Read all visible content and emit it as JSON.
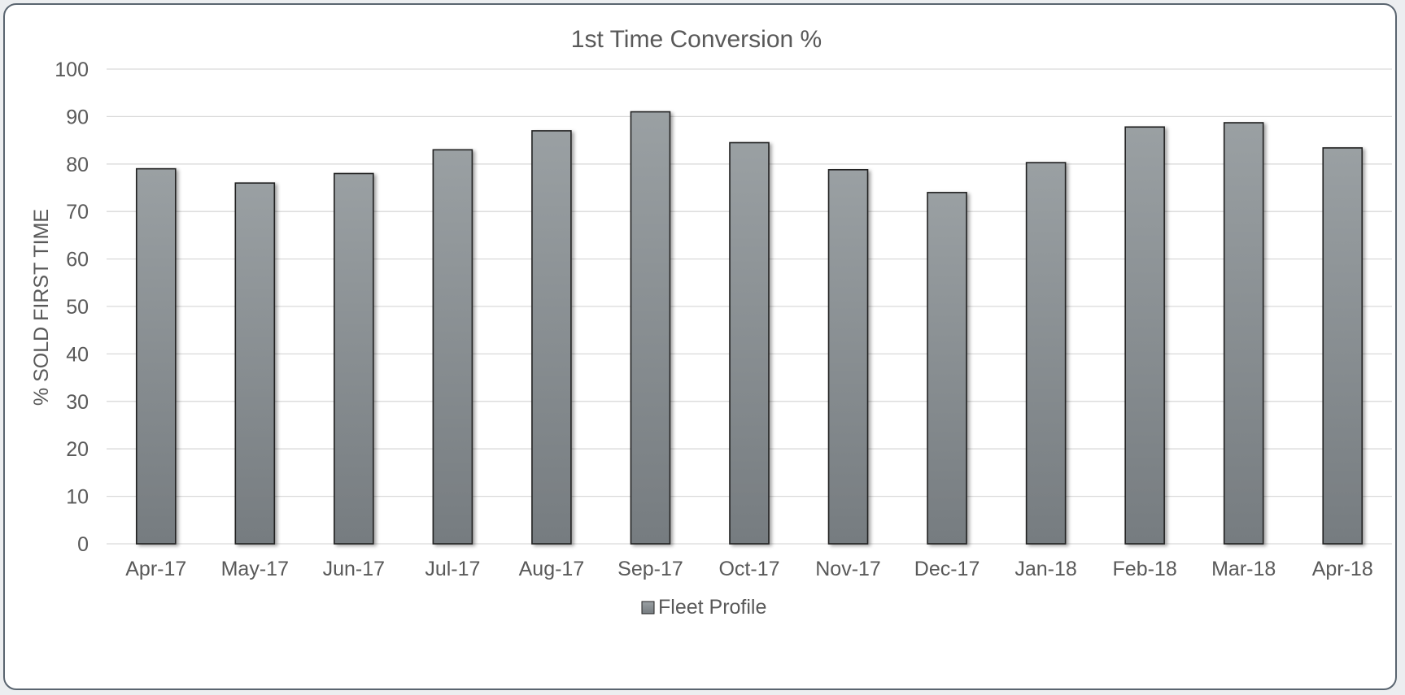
{
  "chart_data": {
    "type": "bar",
    "title": "1st Time Conversion  %",
    "xlabel": "",
    "ylabel": "% SOLD FIRST TIME",
    "ylim": [
      0,
      100
    ],
    "yticks": [
      "0",
      "10",
      "20",
      "30",
      "40",
      "50",
      "60",
      "70",
      "80",
      "90",
      "100"
    ],
    "grid": true,
    "legend_position": "bottom",
    "categories": [
      "Apr-17",
      "May-17",
      "Jun-17",
      "Jul-17",
      "Aug-17",
      "Sep-17",
      "Oct-17",
      "Nov-17",
      "Dec-17",
      "Jan-18",
      "Feb-18",
      "Mar-18",
      "Apr-18"
    ],
    "series": [
      {
        "name": "Fleet Profile",
        "values": [
          79,
          76,
          78,
          83,
          87,
          91,
          84.5,
          78.8,
          74,
          80.3,
          87.8,
          88.7,
          83.4
        ],
        "color_top": "#9aa0a3",
        "color_bottom": "#767c80",
        "edge_color": "#222222"
      }
    ]
  }
}
